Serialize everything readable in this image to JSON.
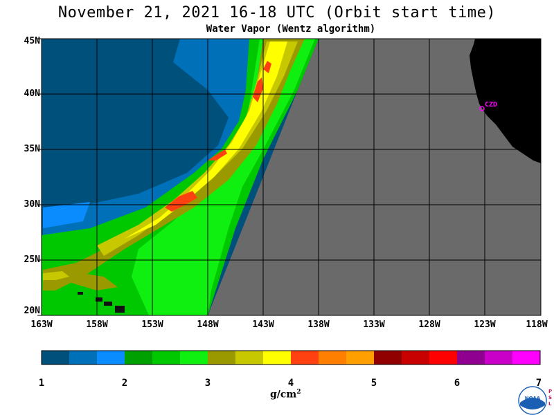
{
  "title": "November 21, 2021  16-18 UTC  (Orbit start time)",
  "subtitle": "Water Vapor (Wentz algorithm)",
  "lat_labels": [
    "45N",
    "40N",
    "35N",
    "30N",
    "25N",
    "20N"
  ],
  "lon_labels": [
    "163W",
    "158W",
    "153W",
    "148W",
    "143W",
    "138W",
    "133W",
    "128W",
    "123W",
    "118W"
  ],
  "station_label": "CZD",
  "colorbar": {
    "colors": [
      "#00507c",
      "#0070b8",
      "#0a8cff",
      "#00a000",
      "#00c800",
      "#10f010",
      "#9a9a00",
      "#c8c800",
      "#ffff00",
      "#ff4010",
      "#ff8000",
      "#ffa000",
      "#900000",
      "#c80000",
      "#ff0000",
      "#900090",
      "#c800c8",
      "#ff00ff"
    ],
    "tick_labels": [
      "1",
      "2",
      "3",
      "4",
      "5",
      "6",
      "7"
    ],
    "units": "g/cm",
    "units_sup": "2"
  },
  "map_colors": {
    "no_data": "#6a6a6a",
    "land": "#000000",
    "grid": "#000000"
  },
  "logo_text": "NOAA",
  "logo_side_text": "PSL"
}
